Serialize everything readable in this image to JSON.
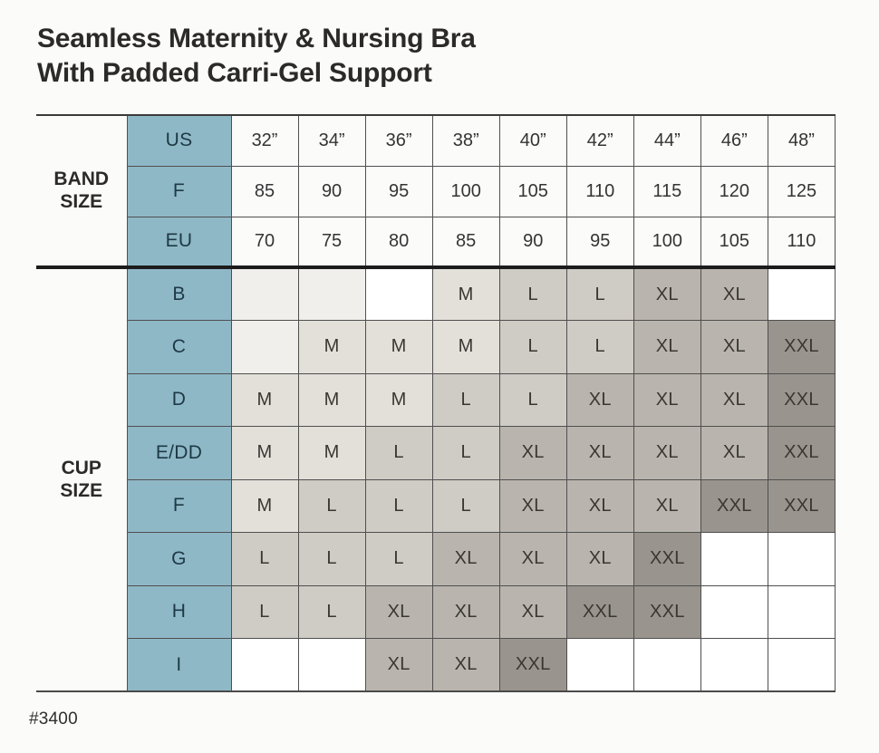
{
  "title": {
    "line1": "Seamless Maternity & Nursing Bra",
    "line2": "With Padded Carri-Gel Support"
  },
  "style_number": "#3400",
  "chart_data": {
    "type": "table",
    "title": "Seamless Maternity & Nursing Bra With Padded Carri-Gel Support",
    "band_size": {
      "label": "BAND SIZE",
      "rows": [
        {
          "label": "US",
          "values": [
            "32”",
            "34”",
            "36”",
            "38”",
            "40”",
            "42”",
            "44”",
            "46”",
            "48”"
          ]
        },
        {
          "label": "F",
          "values": [
            "85",
            "90",
            "95",
            "100",
            "105",
            "110",
            "115",
            "120",
            "125"
          ]
        },
        {
          "label": "EU",
          "values": [
            "70",
            "75",
            "80",
            "85",
            "90",
            "95",
            "100",
            "105",
            "110"
          ]
        }
      ]
    },
    "cup_size": {
      "label": "CUP SIZE",
      "rows": [
        {
          "label": "B",
          "cells": [
            {
              "value": "",
              "shade": "blank"
            },
            {
              "value": "",
              "shade": "blank"
            },
            {
              "value": "",
              "shade": "white"
            },
            {
              "value": "M",
              "shade": "m"
            },
            {
              "value": "L",
              "shade": "l"
            },
            {
              "value": "L",
              "shade": "l"
            },
            {
              "value": "XL",
              "shade": "xl"
            },
            {
              "value": "XL",
              "shade": "xl"
            },
            {
              "value": "",
              "shade": "white"
            }
          ]
        },
        {
          "label": "C",
          "cells": [
            {
              "value": "",
              "shade": "blank"
            },
            {
              "value": "M",
              "shade": "m"
            },
            {
              "value": "M",
              "shade": "m"
            },
            {
              "value": "M",
              "shade": "m"
            },
            {
              "value": "L",
              "shade": "l"
            },
            {
              "value": "L",
              "shade": "l"
            },
            {
              "value": "XL",
              "shade": "xl"
            },
            {
              "value": "XL",
              "shade": "xl"
            },
            {
              "value": "XXL",
              "shade": "xxl"
            }
          ]
        },
        {
          "label": "D",
          "cells": [
            {
              "value": "M",
              "shade": "m"
            },
            {
              "value": "M",
              "shade": "m"
            },
            {
              "value": "M",
              "shade": "m"
            },
            {
              "value": "L",
              "shade": "l"
            },
            {
              "value": "L",
              "shade": "l"
            },
            {
              "value": "XL",
              "shade": "xl"
            },
            {
              "value": "XL",
              "shade": "xl"
            },
            {
              "value": "XL",
              "shade": "xl"
            },
            {
              "value": "XXL",
              "shade": "xxl"
            }
          ]
        },
        {
          "label": "E/DD",
          "cells": [
            {
              "value": "M",
              "shade": "m"
            },
            {
              "value": "M",
              "shade": "m"
            },
            {
              "value": "L",
              "shade": "l"
            },
            {
              "value": "L",
              "shade": "l"
            },
            {
              "value": "XL",
              "shade": "xl"
            },
            {
              "value": "XL",
              "shade": "xl"
            },
            {
              "value": "XL",
              "shade": "xl"
            },
            {
              "value": "XL",
              "shade": "xl"
            },
            {
              "value": "XXL",
              "shade": "xxl"
            }
          ]
        },
        {
          "label": "F",
          "cells": [
            {
              "value": "M",
              "shade": "m"
            },
            {
              "value": "L",
              "shade": "l"
            },
            {
              "value": "L",
              "shade": "l"
            },
            {
              "value": "L",
              "shade": "l"
            },
            {
              "value": "XL",
              "shade": "xl"
            },
            {
              "value": "XL",
              "shade": "xl"
            },
            {
              "value": "XL",
              "shade": "xl"
            },
            {
              "value": "XXL",
              "shade": "xxl"
            },
            {
              "value": "XXL",
              "shade": "xxl"
            }
          ]
        },
        {
          "label": "G",
          "cells": [
            {
              "value": "L",
              "shade": "l"
            },
            {
              "value": "L",
              "shade": "l"
            },
            {
              "value": "L",
              "shade": "l"
            },
            {
              "value": "XL",
              "shade": "xl"
            },
            {
              "value": "XL",
              "shade": "xl"
            },
            {
              "value": "XL",
              "shade": "xl"
            },
            {
              "value": "XXL",
              "shade": "xxl"
            },
            {
              "value": "",
              "shade": "white"
            },
            {
              "value": "",
              "shade": "white"
            }
          ]
        },
        {
          "label": "H",
          "cells": [
            {
              "value": "L",
              "shade": "l"
            },
            {
              "value": "L",
              "shade": "l"
            },
            {
              "value": "XL",
              "shade": "xl"
            },
            {
              "value": "XL",
              "shade": "xl"
            },
            {
              "value": "XL",
              "shade": "xl"
            },
            {
              "value": "XXL",
              "shade": "xxl"
            },
            {
              "value": "XXL",
              "shade": "xxl"
            },
            {
              "value": "",
              "shade": "white"
            },
            {
              "value": "",
              "shade": "white"
            }
          ]
        },
        {
          "label": "I",
          "cells": [
            {
              "value": "",
              "shade": "white"
            },
            {
              "value": "",
              "shade": "white"
            },
            {
              "value": "XL",
              "shade": "xl"
            },
            {
              "value": "XL",
              "shade": "xl"
            },
            {
              "value": "XXL",
              "shade": "xxl"
            },
            {
              "value": "",
              "shade": "white"
            },
            {
              "value": "",
              "shade": "white"
            },
            {
              "value": "",
              "shade": "white"
            },
            {
              "value": "",
              "shade": "white"
            }
          ]
        }
      ]
    }
  },
  "colors": {
    "page_bg": "#fbfbfa",
    "header_blue": "#8fb8c7",
    "header_text": "#1d3944",
    "grid_line": "#4f4f4f",
    "heavy_line": "#1c1c1c",
    "text_dark": "#2b2a28",
    "cell_blank": "#f1efec",
    "cell_white": "#ffffff",
    "cell_m": "#e3e0da",
    "cell_l": "#cfcbc5",
    "cell_xl": "#b9b5ae",
    "cell_xxl": "#99948d"
  }
}
